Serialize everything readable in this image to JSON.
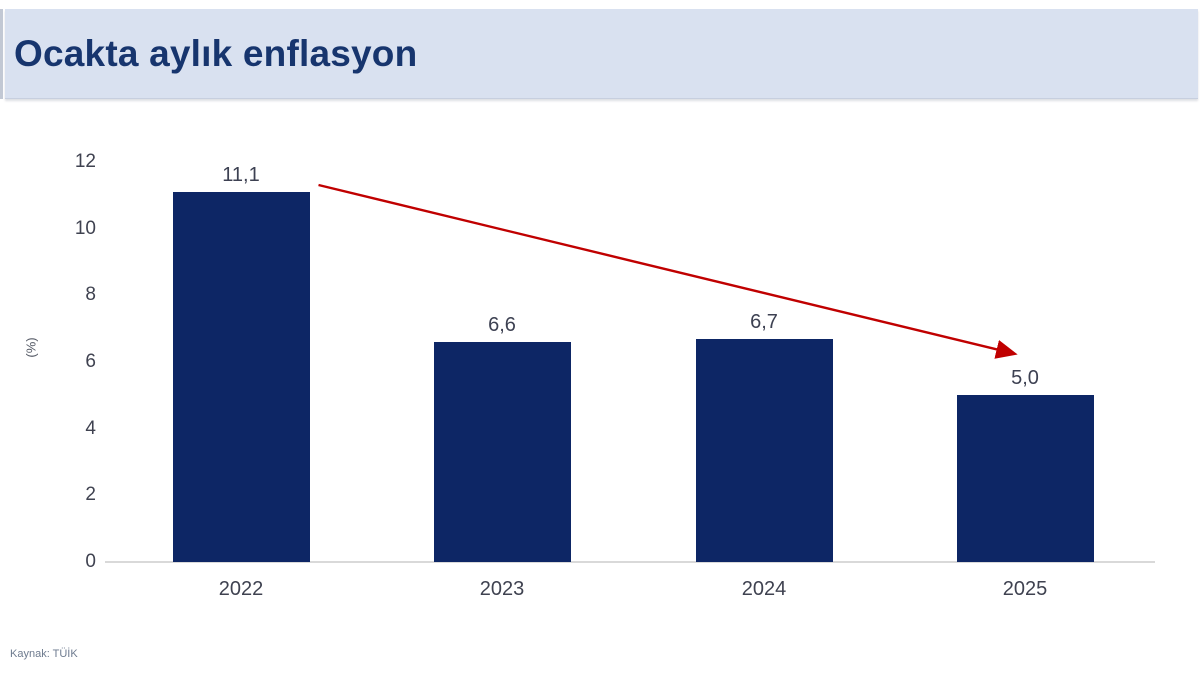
{
  "header": {
    "title": "Ocakta aylık enflasyon"
  },
  "footer": {
    "source": "Kaynak: TÜİK"
  },
  "colors": {
    "banner_bg": "#d9e1f0",
    "title_text": "#17356e",
    "bar": "#0d2665",
    "arrow": "#c00000",
    "value_label": "#3d4152",
    "axis_text": "#3f4250",
    "axis_line": "#d9d9d9",
    "source_text": "#6e7b8f"
  },
  "chart_data": {
    "type": "bar",
    "title": "Ocakta aylık enflasyon",
    "categories": [
      "2022",
      "2023",
      "2024",
      "2025"
    ],
    "values": [
      11.1,
      6.6,
      6.7,
      5.0
    ],
    "value_labels": [
      "11,1",
      "6,6",
      "6,7",
      "5,0"
    ],
    "xlabel": "",
    "ylabel": "(%)",
    "ylim": [
      0,
      12
    ],
    "yticks": [
      0,
      2,
      4,
      6,
      8,
      10,
      12
    ],
    "grid": false,
    "legend": false,
    "annotations": [
      {
        "type": "arrow",
        "description": "downward trend arrow from 2022 bar top to above 2025 bar",
        "from_category": "2022",
        "to_category": "2025",
        "color": "#c00000"
      }
    ]
  }
}
